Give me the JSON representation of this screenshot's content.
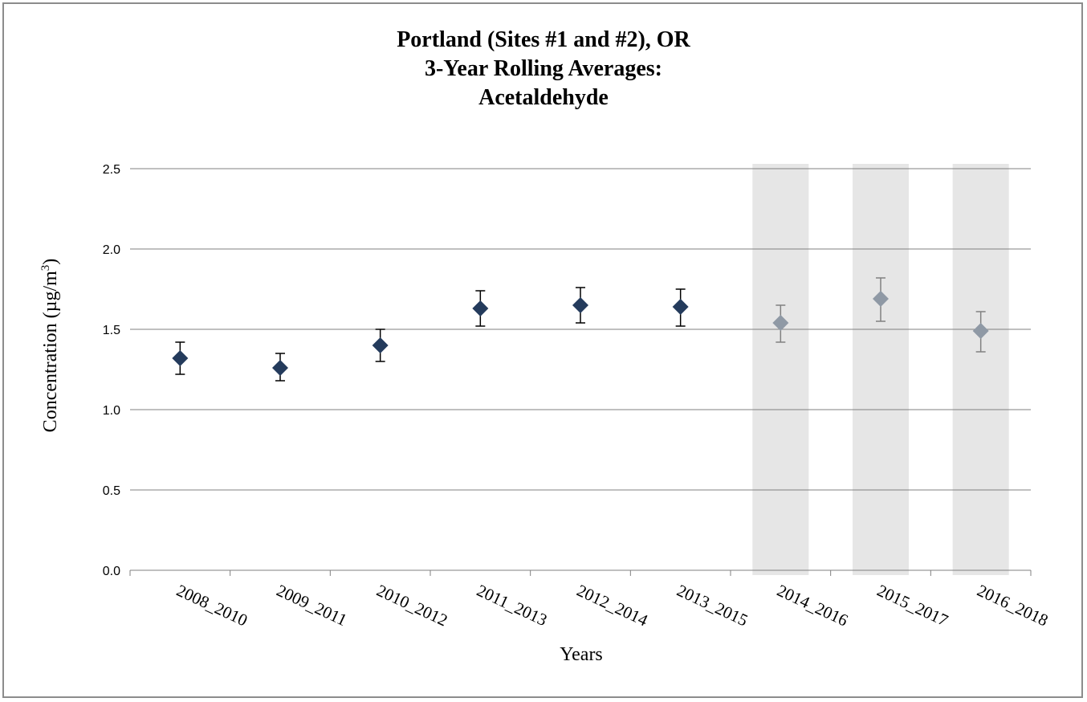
{
  "chart_data": {
    "type": "scatter",
    "title": [
      "Portland (Sites #1 and #2), OR",
      "3-Year Rolling Averages:",
      "Acetaldehyde"
    ],
    "xlabel": "Years",
    "ylabel": "Concentration (µg/m",
    "ylabel_superscript": "3",
    "ylabel_close": ")",
    "ylim": [
      0,
      2.5
    ],
    "yticks": [
      "0.0",
      "0.5",
      "1.0",
      "1.5",
      "2.0",
      "2.5"
    ],
    "grid": true,
    "categories": [
      "2008_2010",
      "2009_2011",
      "2010_2012",
      "2011_2013",
      "2012_2014",
      "2013_2015",
      "2014_2016",
      "2015_2017",
      "2016_2018"
    ],
    "values": [
      1.32,
      1.26,
      1.4,
      1.63,
      1.65,
      1.64,
      1.54,
      1.69,
      1.49
    ],
    "error_low": [
      1.22,
      1.18,
      1.3,
      1.52,
      1.54,
      1.52,
      1.42,
      1.55,
      1.36
    ],
    "error_high": [
      1.42,
      1.35,
      1.5,
      1.74,
      1.76,
      1.75,
      1.65,
      1.82,
      1.61
    ],
    "shaded": [
      false,
      false,
      false,
      false,
      false,
      false,
      true,
      true,
      true
    ],
    "colors": {
      "marker": "#243b5c",
      "marker_shaded": "#8f99a5",
      "error": "#000000",
      "error_shaded": "#808080",
      "band": "#e6e6e6",
      "grid": "#808080"
    }
  }
}
